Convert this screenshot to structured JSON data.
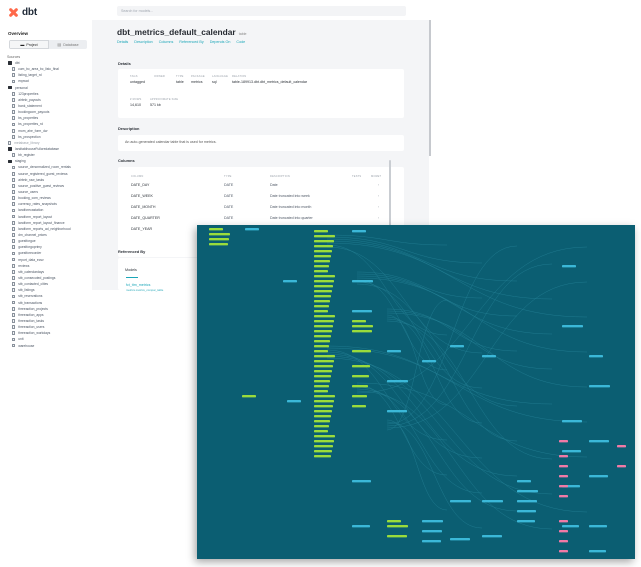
{
  "app": {
    "logo_text": "dbt",
    "brand_color": "#ff694a",
    "search_placeholder": "Search for models..."
  },
  "sidebar": {
    "overview_label": "Overview",
    "tabs": [
      {
        "label": "Project",
        "icon": "folder-icon",
        "active": true
      },
      {
        "label": "Database",
        "icon": "database-icon",
        "active": false
      }
    ],
    "sources_label": "Sources",
    "tree": [
      {
        "label": "dbt",
        "type": "folder",
        "level": 0
      },
      {
        "label": "cum_bc_area_bc_listc_final",
        "type": "file",
        "level": 1
      },
      {
        "label": "listing_target_rd",
        "type": "file",
        "level": 1
      },
      {
        "label": "expwat",
        "type": "file",
        "level": 1
      },
      {
        "label": "personal",
        "type": "folder",
        "level": 0
      },
      {
        "label": "123properties",
        "type": "file",
        "level": 1
      },
      {
        "label": "airbnb_payouts",
        "type": "file",
        "level": 1
      },
      {
        "label": "bank_statement",
        "type": "file",
        "level": 1
      },
      {
        "label": "bookingcom_payouts",
        "type": "file",
        "level": 1
      },
      {
        "label": "bs_properties",
        "type": "file",
        "level": 1
      },
      {
        "label": "bs_properties_rd",
        "type": "file",
        "level": 1
      },
      {
        "label": "mom_ahe_form_dw",
        "type": "file",
        "level": 1
      },
      {
        "label": "bs_prospection",
        "type": "file",
        "level": 1
      },
      {
        "label": "metabase_library",
        "type": "file",
        "level": 0,
        "dim": true
      },
      {
        "label": "landtakthouseFullcredatabase",
        "type": "folder",
        "level": 0
      },
      {
        "label": "bb_register",
        "type": "file",
        "level": 1
      },
      {
        "label": "staging",
        "type": "folder",
        "level": 0
      },
      {
        "label": "source_denormalized_room_rentals",
        "type": "file",
        "level": 1
      },
      {
        "label": "source_registered_guest_reviews",
        "type": "file",
        "level": 1
      },
      {
        "label": "airbnb_raw_tasks",
        "type": "file",
        "level": 1
      },
      {
        "label": "source_positive_guest_reviews",
        "type": "file",
        "level": 1
      },
      {
        "label": "source_users",
        "type": "file",
        "level": 1
      },
      {
        "label": "booking_com_reviews",
        "type": "file",
        "level": 1
      },
      {
        "label": "currency_rates_snapshots",
        "type": "file",
        "level": 1
      },
      {
        "label": "landforecastation",
        "type": "file",
        "level": 1
      },
      {
        "label": "landform_report_layout",
        "type": "file",
        "level": 1
      },
      {
        "label": "landform_report_layout_finance",
        "type": "file",
        "level": 1
      },
      {
        "label": "landform_reports_ad_neighborhood",
        "type": "file",
        "level": 1
      },
      {
        "label": "dm_channel_prices",
        "type": "file",
        "level": 1
      },
      {
        "label": "guestforgue",
        "type": "file",
        "level": 1
      },
      {
        "label": "guestforgoprimy",
        "type": "file",
        "level": 1
      },
      {
        "label": "guestforecorder",
        "type": "file",
        "level": 1
      },
      {
        "label": "report_data_ecsv",
        "type": "file",
        "level": 1
      },
      {
        "label": "reviews",
        "type": "file",
        "level": 1
      },
      {
        "label": "stb_calendardays",
        "type": "file",
        "level": 1
      },
      {
        "label": "stb_consecuted_postings",
        "type": "file",
        "level": 1
      },
      {
        "label": "stb_contacted_cities",
        "type": "file",
        "level": 1
      },
      {
        "label": "stb_listings",
        "type": "file",
        "level": 1
      },
      {
        "label": "stb_reservations",
        "type": "file",
        "level": 1
      },
      {
        "label": "stb_transactions",
        "type": "file",
        "level": 1
      },
      {
        "label": "threeaction_projects",
        "type": "file",
        "level": 1
      },
      {
        "label": "threeaction_apps",
        "type": "file",
        "level": 1
      },
      {
        "label": "threeaction_tasks",
        "type": "file",
        "level": 1
      },
      {
        "label": "threeaction_users",
        "type": "file",
        "level": 1
      },
      {
        "label": "threeaction_workdays",
        "type": "file",
        "level": 1
      },
      {
        "label": "unit",
        "type": "file",
        "level": 1
      },
      {
        "label": "warehouse",
        "type": "file",
        "level": 1
      }
    ]
  },
  "main": {
    "title": "dbt_metrics_default_calendar",
    "badge": "table",
    "tabs": [
      "Details",
      "Description",
      "Columns",
      "Referenced By",
      "Depends On",
      "Code"
    ],
    "details_label": "Details",
    "details_headers": [
      "TAGS",
      "OWNER",
      "TYPE",
      "PACKAGE",
      "LANGUAGE",
      "RELATION"
    ],
    "details_values": [
      "untagged",
      "",
      "table",
      "metrics",
      "sql",
      "table-189913.dbt.dbt_metrics_default_calendar"
    ],
    "stats_headers": [
      "# ROWS",
      "APPROXIMATE SIZE"
    ],
    "stats_values": [
      "14,610",
      "571 kb"
    ],
    "description_label": "Description",
    "description_text": "An auto-generated calendar table that is used for metrics.",
    "columns_label": "Columns",
    "columns_headers": [
      "COLUMN",
      "TYPE",
      "DESCRIPTION",
      "TESTS",
      "MORE?"
    ],
    "columns": [
      {
        "name": "DATE_DAY",
        "type": "DATE",
        "description": "Date"
      },
      {
        "name": "DATE_WEEK",
        "type": "DATE",
        "description": "Date truncated into week"
      },
      {
        "name": "DATE_MONTH",
        "type": "DATE",
        "description": "Date truncated into month"
      },
      {
        "name": "DATE_QUARTER",
        "type": "DATE",
        "description": "Date truncated into quarter"
      },
      {
        "name": "DATE_YEAR",
        "type": "DATE",
        "description": ""
      }
    ],
    "referenced_by_label": "Referenced By",
    "referenced_by_tab": "Models",
    "referenced_model": "fct_ttm_metrics",
    "referenced_model_sub": "metrics.metrics_compar_table"
  },
  "dag": {
    "background": "#0b5e72",
    "model_color": "#9adc3c",
    "source_color": "#3bb8d8",
    "exposure_color": "#f07aa6"
  }
}
